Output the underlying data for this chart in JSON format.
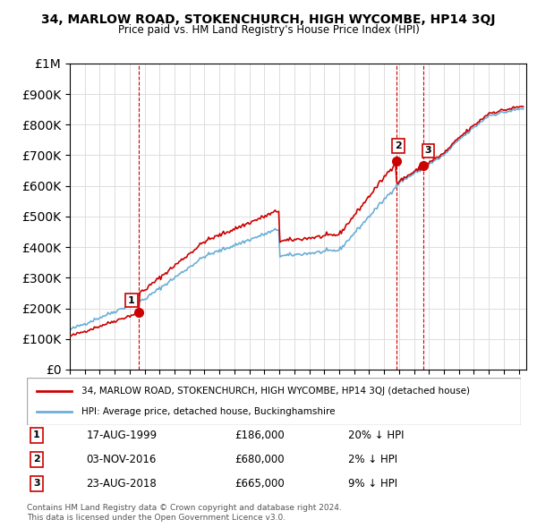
{
  "title": "34, MARLOW ROAD, STOKENCHURCH, HIGH WYCOMBE, HP14 3QJ",
  "subtitle": "Price paid vs. HM Land Registry's House Price Index (HPI)",
  "ylabel_ticks": [
    "£0",
    "£100K",
    "£200K",
    "£300K",
    "£400K",
    "£500K",
    "£600K",
    "£700K",
    "£800K",
    "£900K",
    "£1M"
  ],
  "ytick_values": [
    0,
    100000,
    200000,
    300000,
    400000,
    500000,
    600000,
    700000,
    800000,
    900000,
    1000000
  ],
  "hpi_color": "#6baed6",
  "price_color": "#cc0000",
  "sale_color": "#cc0000",
  "dashed_color": "#cc0000",
  "legend_label_price": "34, MARLOW ROAD, STOKENCHURCH, HIGH WYCOMBE, HP14 3QJ (detached house)",
  "legend_label_hpi": "HPI: Average price, detached house, Buckinghamshire",
  "sales": [
    {
      "label": "1",
      "date": "17-AUG-1999",
      "price": 186000,
      "note": "20% ↓ HPI",
      "x": 1999.63
    },
    {
      "label": "2",
      "date": "03-NOV-2016",
      "price": 680000,
      "note": "2% ↓ HPI",
      "x": 2016.84
    },
    {
      "label": "3",
      "date": "23-AUG-2018",
      "price": 665000,
      "note": "9% ↓ HPI",
      "x": 2018.64
    }
  ],
  "footer": "Contains HM Land Registry data © Crown copyright and database right 2024.\nThis data is licensed under the Open Government Licence v3.0.",
  "xmin": 1995.0,
  "xmax": 2025.5,
  "ymin": 0,
  "ymax": 1000000
}
